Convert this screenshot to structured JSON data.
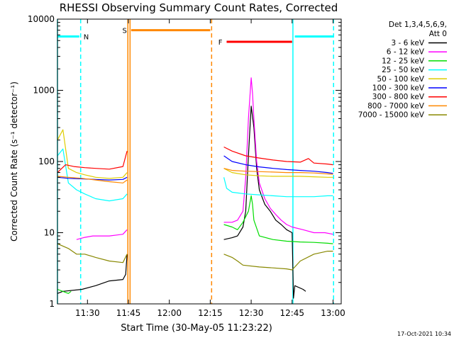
{
  "chart_data": {
    "type": "line",
    "title": "RHESSI Observing Summary Count Rates, Corrected",
    "xlabel": "Start Time (30-May-05 11:23:22)",
    "ylabel": "Corrected Count Rate (s⁻¹ detector⁻¹)",
    "yscale": "log",
    "xlim_min": [
      -4,
      100
    ],
    "ylim": [
      1,
      10000
    ],
    "x_ticks": [
      {
        "v": 7,
        "label": "11:30"
      },
      {
        "v": 22,
        "label": "11:45"
      },
      {
        "v": 37,
        "label": "12:00"
      },
      {
        "v": 52,
        "label": "12:15"
      },
      {
        "v": 67,
        "label": "12:30"
      },
      {
        "v": 82,
        "label": "12:45"
      },
      {
        "v": 97,
        "label": "13:00"
      }
    ],
    "y_ticks": [
      {
        "v": 1,
        "label": "1"
      },
      {
        "v": 10,
        "label": "10"
      },
      {
        "v": 100,
        "label": "100"
      },
      {
        "v": 1000,
        "label": "1000"
      },
      {
        "v": 10000,
        "label": "10000"
      }
    ],
    "legend": {
      "position": "top-right",
      "header1": "Det 1,3,4,5,6,9,",
      "header2": "Att 0"
    },
    "series": [
      {
        "name": "3 - 6 keV",
        "color": "#000000",
        "segments": [
          [
            [
              -4,
              1.4
            ],
            [
              -2,
              1.5
            ],
            [
              5,
              1.6
            ],
            [
              10,
              1.8
            ],
            [
              15,
              2.1
            ],
            [
              20,
              2.2
            ],
            [
              21,
              2.6
            ],
            [
              21.5,
              5
            ]
          ],
          [
            [
              57,
              8
            ],
            [
              60,
              8.5
            ],
            [
              62,
              9
            ],
            [
              64,
              12
            ],
            [
              65,
              20
            ],
            [
              66,
              120
            ],
            [
              67,
              600
            ],
            [
              68,
              300
            ],
            [
              69,
              80
            ],
            [
              70,
              40
            ],
            [
              72,
              25
            ],
            [
              74,
              20
            ],
            [
              76,
              15
            ],
            [
              78,
              13
            ],
            [
              80,
              11
            ],
            [
              82,
              10
            ],
            [
              82.5,
              1.2
            ],
            [
              83,
              1.8
            ],
            [
              86,
              1.6
            ],
            [
              87,
              1.5
            ]
          ]
        ]
      },
      {
        "name": "6 - 12 keV",
        "color": "#ff00ff",
        "segments": [
          [
            [
              3,
              8
            ],
            [
              6,
              8.6
            ],
            [
              9,
              9
            ],
            [
              12,
              9
            ],
            [
              15,
              9
            ],
            [
              18,
              9.3
            ],
            [
              20,
              9.5
            ],
            [
              21.5,
              11
            ]
          ],
          [
            [
              57,
              14
            ],
            [
              60,
              14
            ],
            [
              62,
              15
            ],
            [
              64,
              20
            ],
            [
              65,
              60
            ],
            [
              66,
              400
            ],
            [
              67,
              1500
            ],
            [
              67.5,
              900
            ],
            [
              68,
              400
            ],
            [
              69,
              100
            ],
            [
              70,
              50
            ],
            [
              72,
              30
            ],
            [
              74,
              22
            ],
            [
              76,
              18
            ],
            [
              78,
              15
            ],
            [
              80,
              13
            ],
            [
              82,
              12
            ],
            [
              86,
              11
            ],
            [
              90,
              10
            ],
            [
              94,
              10
            ],
            [
              97,
              9.5
            ]
          ]
        ]
      },
      {
        "name": "12 - 25 keV",
        "color": "#00dd00",
        "segments": [
          [
            [
              -4,
              1.6
            ],
            [
              0,
              1.4
            ],
            [
              1,
              1.5
            ]
          ],
          [
            [
              57,
              13
            ],
            [
              60,
              12
            ],
            [
              62,
              11
            ],
            [
              64,
              14
            ],
            [
              66,
              20
            ],
            [
              67,
              33
            ],
            [
              67.5,
              25
            ],
            [
              68,
              15
            ],
            [
              70,
              9
            ],
            [
              75,
              8
            ],
            [
              80,
              7.6
            ],
            [
              85,
              7.4
            ],
            [
              90,
              7.3
            ],
            [
              95,
              7.1
            ],
            [
              97,
              7
            ]
          ]
        ]
      },
      {
        "name": "25 - 50 keV",
        "color": "#00ffff",
        "segments": [
          [
            [
              -4,
              120
            ],
            [
              -2,
              150
            ],
            [
              0,
              50
            ],
            [
              3,
              40
            ],
            [
              6,
              35
            ],
            [
              10,
              30
            ],
            [
              15,
              28
            ],
            [
              20,
              30
            ],
            [
              21.5,
              35
            ]
          ],
          [
            [
              57,
              60
            ],
            [
              58,
              42
            ],
            [
              60,
              37
            ],
            [
              65,
              35
            ],
            [
              70,
              34
            ],
            [
              75,
              33
            ],
            [
              80,
              32
            ],
            [
              85,
              32
            ],
            [
              90,
              32
            ],
            [
              95,
              33
            ],
            [
              97,
              33
            ]
          ]
        ]
      },
      {
        "name": "50 - 100 keV",
        "color": "#ddcc00",
        "segments": [
          [
            [
              -4,
              200
            ],
            [
              -2,
              280
            ],
            [
              0,
              80
            ],
            [
              3,
              70
            ],
            [
              6,
              65
            ],
            [
              10,
              60
            ],
            [
              15,
              58
            ],
            [
              20,
              60
            ],
            [
              21.5,
              70
            ]
          ],
          [
            [
              57,
              80
            ],
            [
              60,
              70
            ],
            [
              65,
              65
            ],
            [
              70,
              63
            ],
            [
              75,
              62
            ],
            [
              80,
              62
            ],
            [
              85,
              62
            ],
            [
              90,
              61
            ],
            [
              95,
              60
            ],
            [
              97,
              60
            ]
          ]
        ]
      },
      {
        "name": "100 - 300 keV",
        "color": "#0000ff",
        "segments": [
          [
            [
              -4,
              60
            ],
            [
              0,
              58
            ],
            [
              5,
              57
            ],
            [
              10,
              56
            ],
            [
              15,
              55
            ],
            [
              20,
              56
            ],
            [
              21.5,
              60
            ]
          ],
          [
            [
              57,
              120
            ],
            [
              60,
              100
            ],
            [
              65,
              90
            ],
            [
              70,
              84
            ],
            [
              75,
              80
            ],
            [
              80,
              77
            ],
            [
              85,
              75
            ],
            [
              90,
              73
            ],
            [
              95,
              70
            ],
            [
              97,
              68
            ]
          ]
        ]
      },
      {
        "name": "300 - 800 keV",
        "color": "#ff0000",
        "segments": [
          [
            [
              -4,
              70
            ],
            [
              -1,
              90
            ],
            [
              2,
              85
            ],
            [
              6,
              82
            ],
            [
              10,
              80
            ],
            [
              15,
              78
            ],
            [
              20,
              85
            ],
            [
              21.5,
              140
            ]
          ],
          [
            [
              57,
              160
            ],
            [
              60,
              140
            ],
            [
              65,
              120
            ],
            [
              70,
              112
            ],
            [
              75,
              105
            ],
            [
              80,
              100
            ],
            [
              85,
              98
            ],
            [
              88,
              110
            ],
            [
              90,
              95
            ],
            [
              95,
              92
            ],
            [
              97,
              90
            ]
          ]
        ]
      },
      {
        "name": "800 - 7000 keV",
        "color": "#ff8800",
        "segments": [
          [
            [
              -4,
              62
            ],
            [
              0,
              60
            ],
            [
              5,
              58
            ],
            [
              10,
              55
            ],
            [
              15,
              52
            ],
            [
              20,
              50
            ],
            [
              21.5,
              55
            ]
          ],
          [
            [
              57,
              80
            ],
            [
              60,
              75
            ],
            [
              65,
              73
            ],
            [
              70,
              72
            ],
            [
              75,
              71
            ],
            [
              80,
              70
            ],
            [
              85,
              70
            ],
            [
              90,
              69
            ],
            [
              95,
              67
            ],
            [
              97,
              66
            ]
          ]
        ]
      },
      {
        "name": "7000 - 15000 keV",
        "color": "#888800",
        "segments": [
          [
            [
              -4,
              7
            ],
            [
              0,
              6
            ],
            [
              3,
              5
            ],
            [
              6,
              5
            ],
            [
              10,
              4.5
            ],
            [
              15,
              4
            ],
            [
              20,
              3.8
            ],
            [
              21.5,
              5
            ]
          ],
          [
            [
              57,
              5
            ],
            [
              60,
              4.5
            ],
            [
              62,
              4
            ],
            [
              64,
              3.5
            ],
            [
              70,
              3.3
            ],
            [
              75,
              3.2
            ],
            [
              80,
              3.1
            ],
            [
              82,
              3
            ],
            [
              85,
              4
            ],
            [
              90,
              5
            ],
            [
              95,
              5.5
            ],
            [
              97,
              5.5
            ]
          ]
        ]
      }
    ],
    "attenuator_bars": [
      {
        "label": "N",
        "color": "#00ffff",
        "x0": -4,
        "x1": 4,
        "y": 5700
      },
      {
        "label": "S",
        "color": "#ff8800",
        "x0": 23,
        "x1": 52,
        "y": 7000
      },
      {
        "label": "F",
        "color": "#ff0000",
        "x0": 58,
        "x1": 82,
        "y": 4800
      },
      {
        "label": "",
        "color": "#00ffff",
        "x0": 83,
        "x1": 97,
        "y": 5700
      }
    ],
    "vertical_markers": [
      {
        "x": -4,
        "color": "#00ffff",
        "style": "solid"
      },
      {
        "x": 4.5,
        "color": "#00ffff",
        "style": "dashed"
      },
      {
        "x": 21.8,
        "color": "#ff8800",
        "style": "solid"
      },
      {
        "x": 22.6,
        "color": "#ff8800",
        "style": "solid"
      },
      {
        "x": 52.5,
        "color": "#ff8800",
        "style": "dashed"
      },
      {
        "x": 82.3,
        "color": "#00ffff",
        "style": "solid"
      },
      {
        "x": 97.2,
        "color": "#00ffff",
        "style": "dashed"
      }
    ],
    "footer_date": "17-Oct-2021 10:34"
  }
}
